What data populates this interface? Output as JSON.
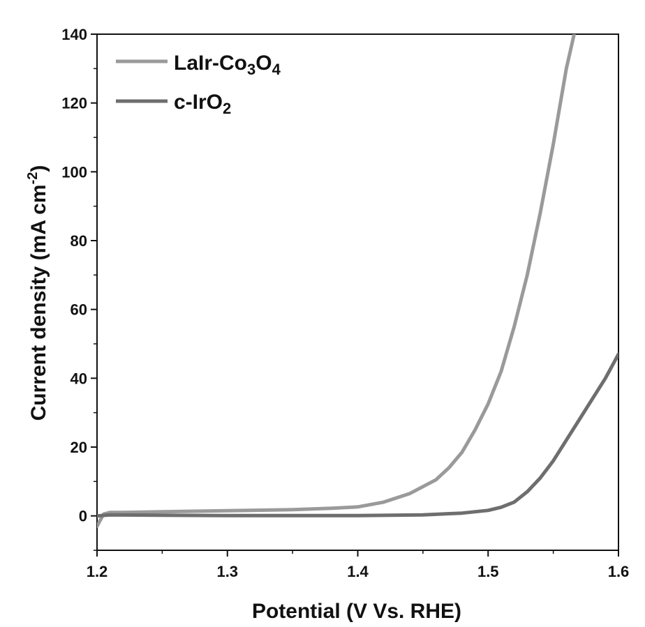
{
  "chart_data": {
    "type": "line",
    "xlabel": "Potential (V Vs. RHE)",
    "ylabel": "Current density (mA cm",
    "ylabel_sup": "-2",
    "ylabel_close": ")",
    "xlim": [
      1.2,
      1.6
    ],
    "ylim": [
      -10,
      140
    ],
    "xticks": [
      1.2,
      1.3,
      1.4,
      1.5,
      1.6
    ],
    "xtick_labels": [
      "1.2",
      "1.3",
      "1.4",
      "1.5",
      "1.6"
    ],
    "yticks": [
      0,
      20,
      40,
      60,
      80,
      100,
      120,
      140
    ],
    "ytick_labels": [
      "0",
      "20",
      "40",
      "60",
      "80",
      "100",
      "120",
      "140"
    ],
    "grid": false,
    "legend_position": "top-left",
    "series": [
      {
        "name": "LaIr-Co3O4",
        "legend": {
          "main": "LaIr-Co",
          "sub1": "3",
          "mid": "O",
          "sub2": "4"
        },
        "color": "#9a9a9a",
        "x": [
          1.2,
          1.205,
          1.21,
          1.22,
          1.25,
          1.3,
          1.35,
          1.38,
          1.4,
          1.42,
          1.44,
          1.46,
          1.47,
          1.48,
          1.49,
          1.5,
          1.51,
          1.52,
          1.53,
          1.54,
          1.55,
          1.56,
          1.566
        ],
        "y": [
          -3,
          0.5,
          1,
          1,
          1.2,
          1.5,
          1.8,
          2.2,
          2.6,
          4,
          6.5,
          10.5,
          14,
          18.5,
          25,
          32.5,
          42,
          55,
          70,
          88,
          108,
          130,
          140
        ]
      },
      {
        "name": "c-IrO2",
        "legend": {
          "main": "c-IrO",
          "sub1": "2",
          "mid": "",
          "sub2": ""
        },
        "color": "#6e6e6e",
        "x": [
          1.2,
          1.21,
          1.25,
          1.3,
          1.35,
          1.4,
          1.45,
          1.48,
          1.5,
          1.51,
          1.52,
          1.53,
          1.54,
          1.55,
          1.56,
          1.57,
          1.58,
          1.59,
          1.6
        ],
        "y": [
          0,
          0.3,
          0.2,
          0.1,
          0.1,
          0.1,
          0.3,
          0.8,
          1.6,
          2.5,
          4,
          7,
          11,
          16,
          22,
          28,
          34,
          40,
          47
        ]
      }
    ]
  }
}
